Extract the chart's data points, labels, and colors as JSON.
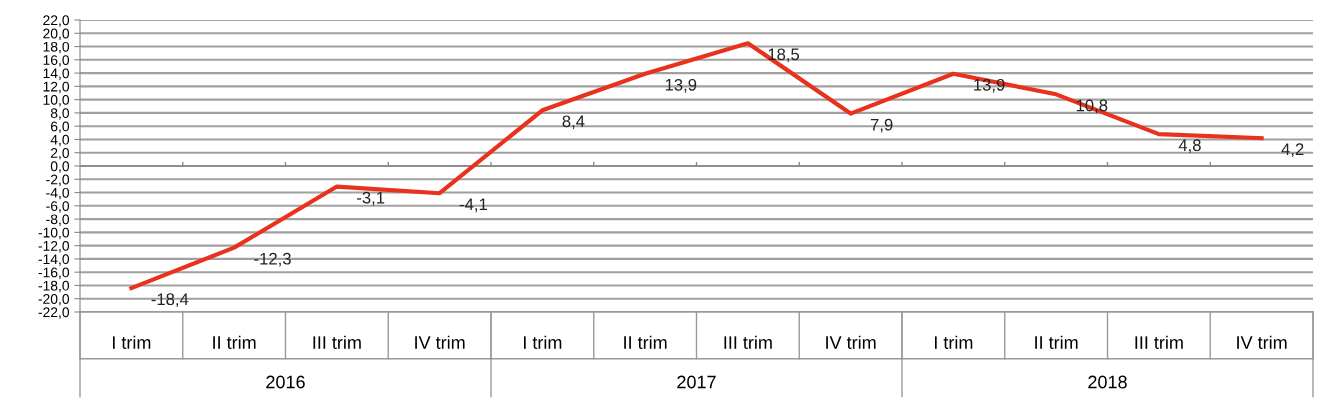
{
  "chart_data": {
    "type": "line",
    "categories": [
      "I trim",
      "II trim",
      "III trim",
      "IV trim",
      "I trim",
      "II trim",
      "III trim",
      "IV trim",
      "I trim",
      "II trim",
      "III trim",
      "IV trim"
    ],
    "series": [
      {
        "color": "#e8321e",
        "values": [
          -18.4,
          -12.3,
          -3.1,
          -4.1,
          8.4,
          13.9,
          18.5,
          7.9,
          13.9,
          10.8,
          4.8,
          4.2
        ],
        "value_labels": [
          "-18,4",
          "-12,3",
          "-3,1",
          "-4,1",
          "8,4",
          "13,9",
          "18,5",
          "7,9",
          "13,9",
          "10,8",
          "4,8",
          "4,2"
        ]
      }
    ],
    "annotations": [
      "2016",
      "2017",
      "2018"
    ],
    "ylim": [
      -22,
      22
    ],
    "yticks": [
      {
        "value": -22,
        "label": "-22,0"
      },
      {
        "value": -20,
        "label": "-20,0"
      },
      {
        "value": -18,
        "label": "-18,0"
      },
      {
        "value": -16,
        "label": "-16,0"
      },
      {
        "value": -14,
        "label": "-14,0"
      },
      {
        "value": -12,
        "label": "-12,0"
      },
      {
        "value": -10,
        "label": "-10,0"
      },
      {
        "value": -8,
        "label": "-8,0"
      },
      {
        "value": -6,
        "label": "-6,0"
      },
      {
        "value": -4,
        "label": "-4,0"
      },
      {
        "value": -2,
        "label": "-2,0"
      },
      {
        "value": 0,
        "label": "0,0"
      },
      {
        "value": 2,
        "label": "2,0"
      },
      {
        "value": 4,
        "label": "4,0"
      },
      {
        "value": 6,
        "label": "6,0"
      },
      {
        "value": 8,
        "label": "8,0"
      },
      {
        "value": 10,
        "label": "10,0"
      },
      {
        "value": 12,
        "label": "12,0"
      },
      {
        "value": 14,
        "label": "14,0"
      },
      {
        "value": 16,
        "label": "16,0"
      },
      {
        "value": 18,
        "label": "18,0"
      },
      {
        "value": 20,
        "label": "20,0"
      },
      {
        "value": 22,
        "label": "22,0"
      }
    ],
    "grid": "y",
    "marker": "none",
    "line_style": "solid",
    "legend": false
  }
}
